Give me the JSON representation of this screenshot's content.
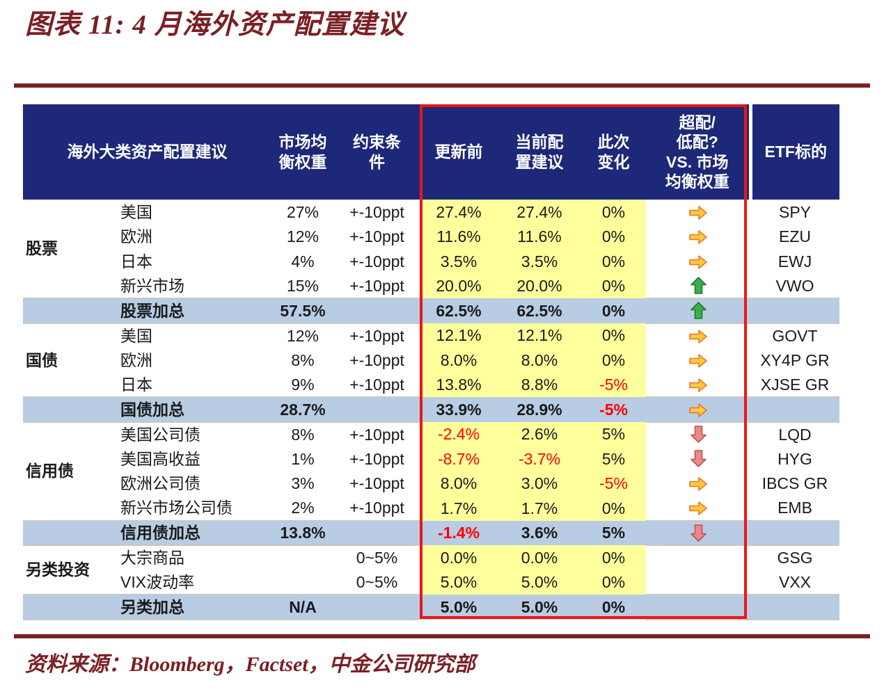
{
  "title": "图表 11: 4 月海外资产配置建议",
  "source": "资料来源：Bloomberg，Factset，中金公司研究部",
  "colors": {
    "maroon": "#7A2025",
    "navy": "#1E2878",
    "yellow": "#FFFF9C",
    "subtotal_blue": "#B8CCE4",
    "red_text": "#FF0000",
    "red_box": "#F01414",
    "gray_line": "#C8C8C8",
    "arrow_orange_fill": "#FFC845",
    "arrow_orange_stroke": "#E8791A",
    "arrow_green_fill": "#3DAE49",
    "arrow_green_stroke": "#1F7A2E",
    "arrow_red_fill": "#E98B8B",
    "arrow_red_stroke": "#C0504D"
  },
  "icons": {
    "right": "right-arrow-icon",
    "up": "up-arrow-icon",
    "down": "down-arrow-icon"
  },
  "table": {
    "headers": {
      "group": "海外大类资产配置建议",
      "market_weight": "市场均\n衡权重",
      "constraint": "约束条\n件",
      "pre_update": "更新前",
      "current": "当前配\n置建议",
      "change": "此次\n变化",
      "over_under": "超配/\n低配?\nVS. 市场\n均衡权重",
      "etf": "ETF标的"
    },
    "rows": [
      {
        "category": "股票",
        "cat_span": 4,
        "asset": "美国",
        "weight": "27%",
        "constraint": "+-10ppt",
        "pre": "27.4%",
        "cur": "27.4%",
        "chg": "0%",
        "arrow": "right",
        "etf": "SPY"
      },
      {
        "asset": "欧洲",
        "weight": "12%",
        "constraint": "+-10ppt",
        "pre": "11.6%",
        "cur": "11.6%",
        "chg": "0%",
        "arrow": "right",
        "etf": "EZU"
      },
      {
        "asset": "日本",
        "weight": "4%",
        "constraint": "+-10ppt",
        "pre": "3.5%",
        "cur": "3.5%",
        "chg": "0%",
        "arrow": "right",
        "etf": "EWJ"
      },
      {
        "asset": "新兴市场",
        "weight": "15%",
        "constraint": "+-10ppt",
        "pre": "20.0%",
        "cur": "20.0%",
        "chg": "0%",
        "arrow": "up",
        "etf": "VWO"
      },
      {
        "subtotal": true,
        "asset": "股票加总",
        "weight": "57.5%",
        "constraint": "",
        "pre": "62.5%",
        "cur": "62.5%",
        "chg": "0%",
        "arrow": "up",
        "etf": ""
      },
      {
        "category": "国债",
        "cat_span": 3,
        "asset": "美国",
        "weight": "12%",
        "constraint": "+-10ppt",
        "pre": "12.1%",
        "cur": "12.1%",
        "chg": "0%",
        "arrow": "right",
        "etf": "GOVT"
      },
      {
        "asset": "欧洲",
        "weight": "8%",
        "constraint": "+-10ppt",
        "pre": "8.0%",
        "cur": "8.0%",
        "chg": "0%",
        "arrow": "right",
        "etf": "XY4P GR"
      },
      {
        "asset": "日本",
        "weight": "9%",
        "constraint": "+-10ppt",
        "pre": "13.8%",
        "cur": "8.8%",
        "chg": "-5%",
        "chg_red": true,
        "arrow": "right",
        "etf": "XJSE GR"
      },
      {
        "subtotal": true,
        "asset": "国债加总",
        "weight": "28.7%",
        "constraint": "",
        "pre": "33.9%",
        "cur": "28.9%",
        "chg": "-5%",
        "chg_red": true,
        "arrow": "right",
        "etf": ""
      },
      {
        "category": "信用债",
        "cat_span": 4,
        "asset": "美国公司债",
        "weight": "8%",
        "constraint": "+-10ppt",
        "pre": "-2.4%",
        "pre_red": true,
        "cur": "2.6%",
        "chg": "5%",
        "arrow": "down",
        "etf": "LQD"
      },
      {
        "asset": "美国高收益",
        "weight": "1%",
        "constraint": "+-10ppt",
        "pre": "-8.7%",
        "pre_red": true,
        "cur": "-3.7%",
        "cur_red": true,
        "chg": "5%",
        "arrow": "down",
        "etf": "HYG"
      },
      {
        "asset": "欧洲公司债",
        "weight": "3%",
        "constraint": "+-10ppt",
        "pre": "8.0%",
        "cur": "3.0%",
        "chg": "-5%",
        "chg_red": true,
        "arrow": "right",
        "etf": "IBCS GR"
      },
      {
        "asset": "新兴市场公司债",
        "weight": "2%",
        "constraint": "+-10ppt",
        "pre": "1.7%",
        "cur": "1.7%",
        "chg": "0%",
        "arrow": "right",
        "etf": "EMB"
      },
      {
        "subtotal": true,
        "asset": "信用债加总",
        "weight": "13.8%",
        "constraint": "",
        "pre": "-1.4%",
        "pre_red": true,
        "cur": "3.6%",
        "chg": "5%",
        "arrow": "down",
        "etf": ""
      },
      {
        "category": "另类投资",
        "cat_span": 2,
        "asset": "大宗商品",
        "weight": "",
        "constraint": "0~5%",
        "pre": "0.0%",
        "cur": "0.0%",
        "chg": "0%",
        "arrow": "",
        "etf": "GSG"
      },
      {
        "asset": "VIX波动率",
        "weight": "",
        "constraint": "0~5%",
        "pre": "5.0%",
        "cur": "5.0%",
        "chg": "0%",
        "arrow": "",
        "etf": "VXX"
      },
      {
        "subtotal": true,
        "asset": "另类加总",
        "weight": "N/A",
        "constraint": "",
        "pre": "5.0%",
        "cur": "5.0%",
        "chg": "0%",
        "arrow": "",
        "etf": ""
      }
    ]
  }
}
